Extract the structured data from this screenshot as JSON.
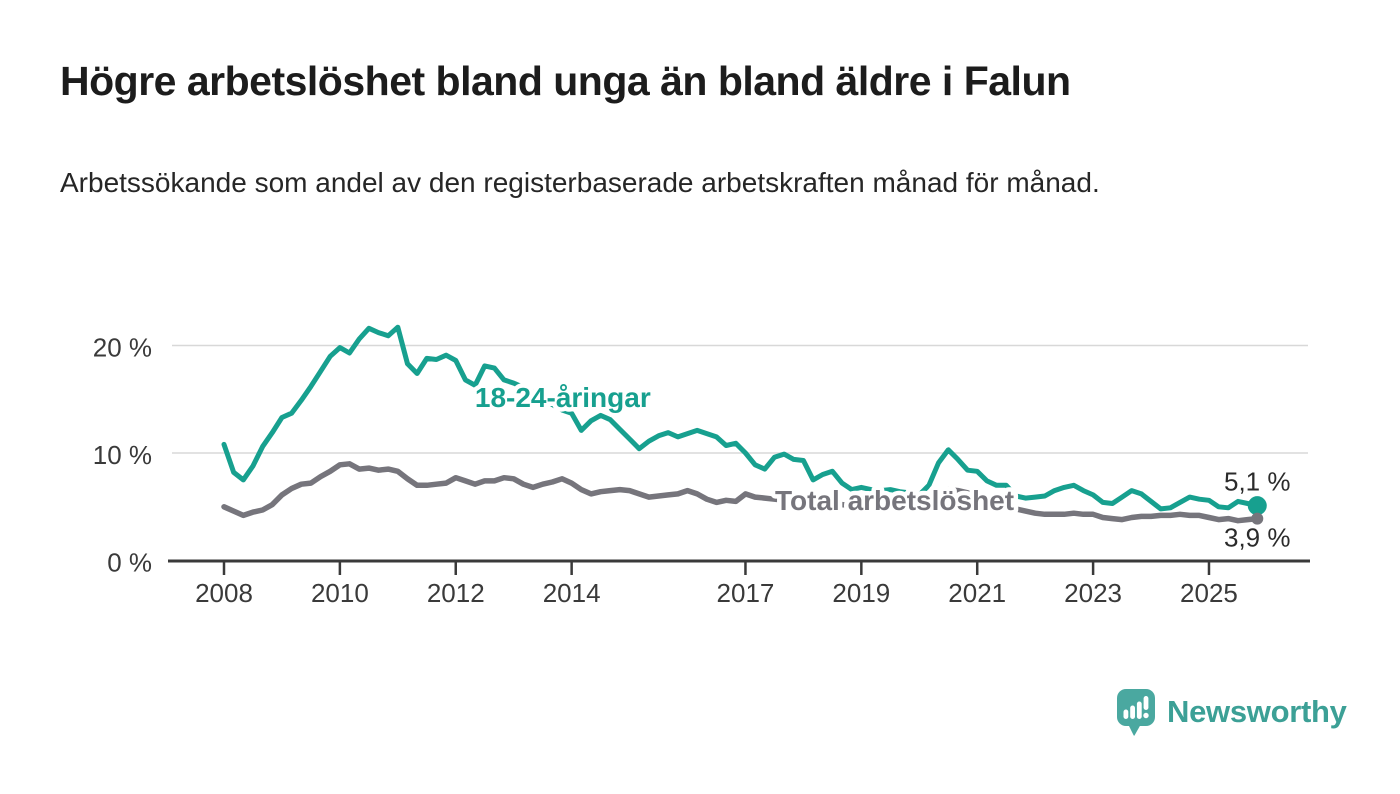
{
  "header": {
    "title": "Högre arbetslöshet bland unga än bland äldre i Falun",
    "subtitle": "Arbetssökande som andel av den registerbaserade arbetskraften månad för månad."
  },
  "footer": {
    "logo_text": "Newsworthy",
    "logo_icon": "bar-chart-speech-bubble-icon"
  },
  "palette": {
    "young": "#17A08F",
    "total": "#76757C",
    "axis": "#3A3A3A",
    "grid": "#D8D8D8",
    "value_label": "#2B2B2B",
    "logo": "#4AA8A0",
    "logo_text": "#3CA096"
  },
  "chart_data": {
    "type": "line",
    "title": "Högre arbetslöshet bland unga än bland äldre i Falun",
    "subtitle": "Arbetssökande som andel av den registerbaserade arbetskraften månad för månad.",
    "unit": "%",
    "x_start_year": 2008.0,
    "x_step_years": 0.1666667,
    "xlim": [
      2007.0,
      2026.7
    ],
    "ylim": [
      0,
      23.5
    ],
    "grid": "horizontal",
    "x_ticks": [
      2008,
      2010,
      2012,
      2014,
      2017,
      2019,
      2021,
      2023,
      2025
    ],
    "y_ticks": [
      {
        "value": 0,
        "label": "0 %"
      },
      {
        "value": 10,
        "label": "10 %"
      },
      {
        "value": 20,
        "label": "20 %"
      }
    ],
    "series": [
      {
        "name": "18-24-åringar",
        "color": "#17A08F",
        "line_width": 5,
        "end_dot_radius": 9.5,
        "end_label": "5,1 %",
        "end_value": 5.1,
        "label_anchor": {
          "year": 2012.33,
          "value": 14.3
        },
        "values": [
          10.8,
          8.2,
          7.5,
          8.8,
          10.6,
          11.9,
          13.3,
          13.7,
          14.9,
          16.2,
          17.6,
          19.0,
          19.8,
          19.3,
          20.6,
          21.6,
          21.2,
          20.9,
          21.7,
          18.3,
          17.4,
          18.8,
          18.7,
          19.1,
          18.6,
          16.8,
          16.3,
          18.1,
          17.9,
          16.8,
          16.5,
          16.1,
          15.7,
          15.1,
          14.5,
          14.0,
          13.7,
          12.1,
          13.0,
          13.5,
          13.1,
          12.2,
          11.3,
          10.4,
          11.1,
          11.6,
          11.9,
          11.5,
          11.8,
          12.1,
          11.8,
          11.5,
          10.7,
          10.9,
          10.0,
          8.9,
          8.5,
          9.6,
          9.9,
          9.4,
          9.3,
          7.5,
          8.0,
          8.3,
          7.2,
          6.6,
          6.8,
          6.6,
          6.5,
          6.6,
          6.4,
          6.3,
          6.1,
          7.0,
          9.1,
          10.3,
          9.4,
          8.4,
          8.3,
          7.4,
          7.0,
          7.0,
          6.0,
          5.8,
          5.9,
          6.0,
          6.5,
          6.8,
          7.0,
          6.5,
          6.1,
          5.4,
          5.3,
          5.9,
          6.5,
          6.2,
          5.5,
          4.8,
          4.9,
          5.4,
          5.9,
          5.7,
          5.6,
          5.0,
          4.9,
          5.5,
          5.3,
          5.1
        ]
      },
      {
        "name": "Total arbetslöshet",
        "color": "#76757C",
        "line_width": 5.5,
        "end_dot_radius": 6,
        "end_label": "3,9 %",
        "end_value": 3.9,
        "label_anchor": {
          "year": 2017.51,
          "value": 4.7
        },
        "values": [
          5.0,
          4.6,
          4.2,
          4.5,
          4.7,
          5.2,
          6.1,
          6.7,
          7.1,
          7.2,
          7.8,
          8.3,
          8.9,
          9.0,
          8.5,
          8.6,
          8.4,
          8.5,
          8.3,
          7.6,
          7.0,
          7.0,
          7.1,
          7.2,
          7.7,
          7.4,
          7.1,
          7.4,
          7.4,
          7.7,
          7.6,
          7.1,
          6.8,
          7.1,
          7.3,
          7.6,
          7.2,
          6.6,
          6.2,
          6.4,
          6.5,
          6.6,
          6.5,
          6.2,
          5.9,
          6.0,
          6.1,
          6.2,
          6.5,
          6.2,
          5.7,
          5.4,
          5.6,
          5.5,
          6.2,
          5.9,
          5.8,
          5.7,
          5.6,
          5.5,
          5.5,
          5.4,
          5.3,
          5.2,
          5.2,
          5.1,
          5.1,
          5.0,
          5.0,
          4.9,
          5.0,
          5.1,
          5.2,
          5.6,
          6.3,
          6.6,
          6.5,
          6.3,
          6.0,
          5.7,
          5.4,
          5.1,
          4.8,
          4.6,
          4.4,
          4.3,
          4.3,
          4.3,
          4.4,
          4.3,
          4.3,
          4.0,
          3.9,
          3.8,
          4.0,
          4.1,
          4.1,
          4.2,
          4.2,
          4.3,
          4.2,
          4.2,
          4.0,
          3.8,
          3.9,
          3.7,
          3.8,
          3.9
        ]
      }
    ]
  }
}
